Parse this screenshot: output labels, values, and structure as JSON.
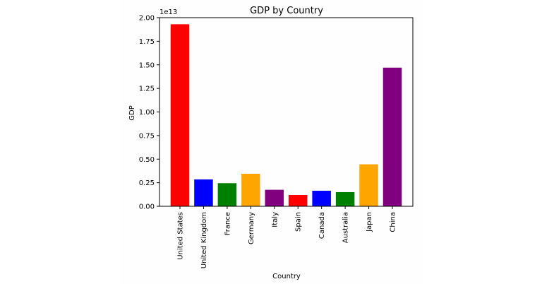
{
  "chart_data": {
    "type": "bar",
    "title": "GDP by Country",
    "xlabel": "Country",
    "ylabel": "GDP",
    "offset_label": "1e13",
    "categories": [
      "United States",
      "United Kingdom",
      "France",
      "Germany",
      "Italy",
      "Spain",
      "Canada",
      "Australia",
      "Japan",
      "China"
    ],
    "values": [
      19300000000000.0,
      2850000000000.0,
      2450000000000.0,
      3450000000000.0,
      1750000000000.0,
      1200000000000.0,
      1650000000000.0,
      1500000000000.0,
      4450000000000.0,
      14700000000000.0
    ],
    "colors": [
      "#ff0000",
      "#0000ff",
      "#008000",
      "#ffa500",
      "#800080",
      "#ff0000",
      "#0000ff",
      "#008000",
      "#ffa500",
      "#800080"
    ],
    "ylim": [
      0,
      20000000000000.0
    ],
    "yticks": [
      "0.00",
      "0.25",
      "0.50",
      "0.75",
      "1.00",
      "1.25",
      "1.50",
      "1.75",
      "2.00"
    ],
    "grid": false,
    "legend": "none"
  }
}
